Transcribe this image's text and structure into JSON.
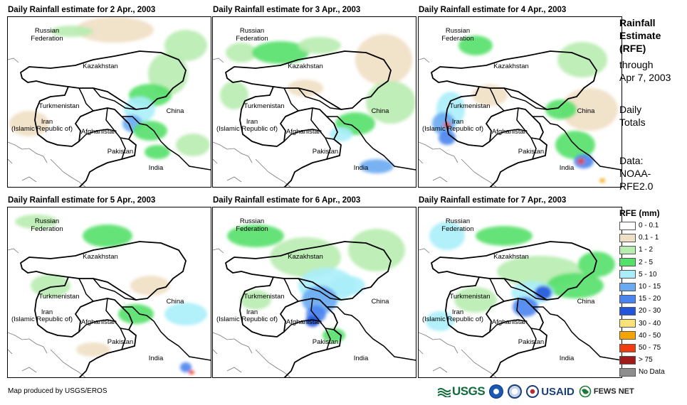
{
  "panels": [
    {
      "title": "Daily Rainfall estimate for 2 Apr., 2003"
    },
    {
      "title": "Daily Rainfall estimate for 3 Apr., 2003"
    },
    {
      "title": "Daily Rainfall estimate for 4 Apr., 2003"
    },
    {
      "title": "Daily Rainfall estimate for 5 Apr., 2003"
    },
    {
      "title": "Daily Rainfall estimate for 6 Apr., 2003"
    },
    {
      "title": "Daily Rainfall estimate for 7 Apr., 2003"
    }
  ],
  "map_labels": {
    "russia_line1": "Russian",
    "russia_line2": "Federation",
    "kazakhstan": "Kazakhstan",
    "turkmenistan": "Turkmenistan",
    "iran_line1": "Iran",
    "iran_line2": "(Islamic Republic of)",
    "afghanistan": "Afghanistan",
    "pakistan": "Pakistan",
    "china": "China",
    "india": "India"
  },
  "sidebar": {
    "heading_line1": "Rainfall",
    "heading_line2": "Estimate",
    "heading_line3": "(RFE)",
    "through_line1": "through",
    "through_line2": "Apr 7, 2003",
    "totals_line1": "Daily",
    "totals_line2": "Totals",
    "data_line1": "Data:",
    "data_line2": "NOAA-",
    "data_line3": "RFE2.0"
  },
  "legend": {
    "title": "RFE (mm)",
    "items": [
      {
        "label": "0 - 0.1",
        "color": "#ffffff"
      },
      {
        "label": "0.1 - 1",
        "color": "#efdfc4"
      },
      {
        "label": "1 - 2",
        "color": "#b8ecb0"
      },
      {
        "label": "2 - 5",
        "color": "#55e06a"
      },
      {
        "label": "5 - 10",
        "color": "#aaeefa"
      },
      {
        "label": "10 - 15",
        "color": "#6aaaf2"
      },
      {
        "label": "15 - 20",
        "color": "#4a84ee"
      },
      {
        "label": "20 - 30",
        "color": "#2454dc"
      },
      {
        "label": "30 - 40",
        "color": "#fae27a"
      },
      {
        "label": "40 - 50",
        "color": "#f6a400"
      },
      {
        "label": "50 - 75",
        "color": "#f03c10"
      },
      {
        "label": "> 75",
        "color": "#a01c1c"
      },
      {
        "label": "No Data",
        "color": "#8e8e8e"
      }
    ]
  },
  "footer": {
    "credit": "Map produced by USGS/EROS",
    "logo_usgs": "USGS",
    "logo_usaid": "USAID",
    "logo_fews": "FEWS NET"
  }
}
